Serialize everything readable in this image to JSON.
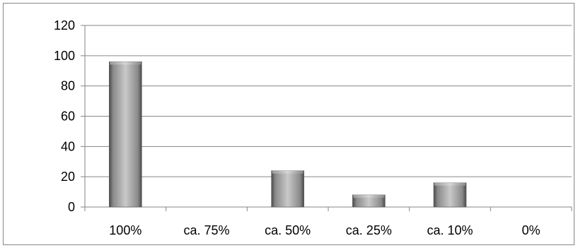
{
  "chart_data": {
    "type": "bar",
    "categories": [
      "100%",
      "ca. 75%",
      "ca. 50%",
      "ca. 25%",
      "ca. 10%",
      "0%"
    ],
    "values": [
      96,
      0,
      24,
      8,
      16,
      0
    ],
    "title": "",
    "xlabel": "",
    "ylabel": "",
    "ylim": [
      0,
      120
    ],
    "yticks": [
      0,
      20,
      40,
      60,
      80,
      100,
      120
    ],
    "grid": true,
    "legend": "none",
    "colors": {
      "bar_light": "#c9c9c9",
      "bar_mid": "#8a8a8a",
      "bar_dark": "#4a4a4a",
      "gridline": "#868686",
      "axis": "#868686"
    }
  }
}
